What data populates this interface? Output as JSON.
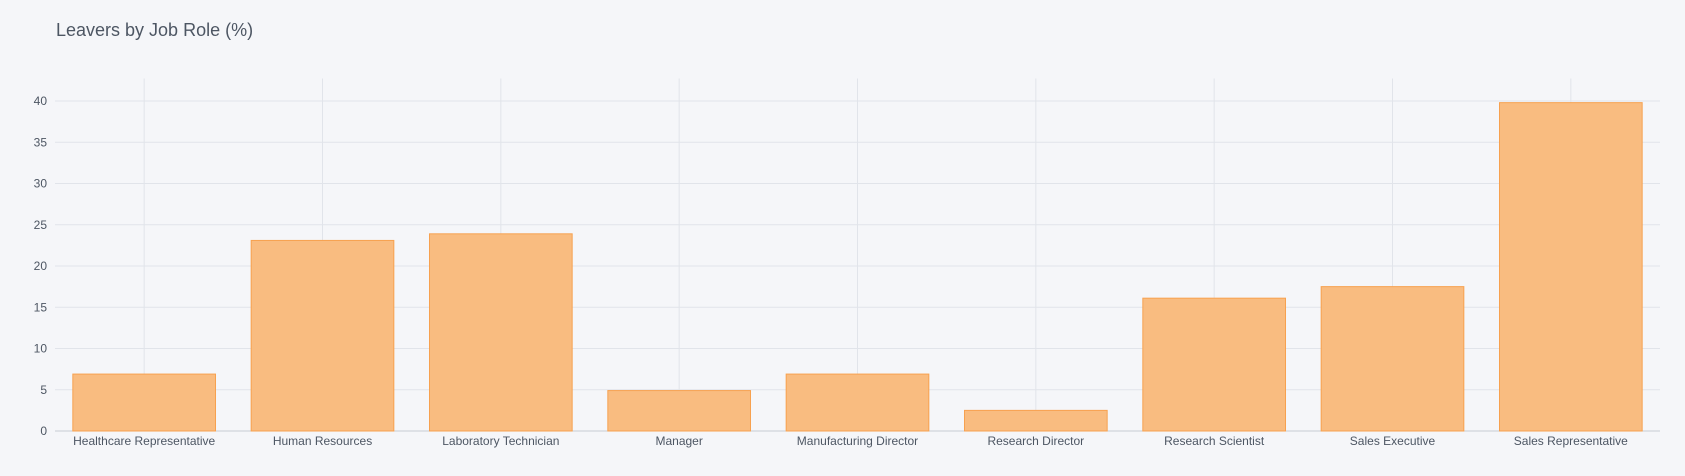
{
  "chart_data": {
    "type": "bar",
    "title": "Leavers by Job Role (%)",
    "xlabel": "",
    "ylabel": "",
    "categories": [
      "Healthcare Representative",
      "Human Resources",
      "Laboratory Technician",
      "Manager",
      "Manufacturing Director",
      "Research Director",
      "Research Scientist",
      "Sales Executive",
      "Sales Representative"
    ],
    "values": [
      6.9,
      23.1,
      23.9,
      4.9,
      6.9,
      2.5,
      16.1,
      17.5,
      39.8
    ],
    "ylim": [
      0,
      42
    ],
    "yticks": [
      0,
      5,
      10,
      15,
      20,
      25,
      30,
      35,
      40
    ],
    "grid": true,
    "legend": "none",
    "colors": {
      "bar_fill": "#f9bc80",
      "bar_stroke": "#f7a14f",
      "grid": "#e1e4ea",
      "axis_text": "#4d5663",
      "background": "#f5f6f9"
    }
  }
}
